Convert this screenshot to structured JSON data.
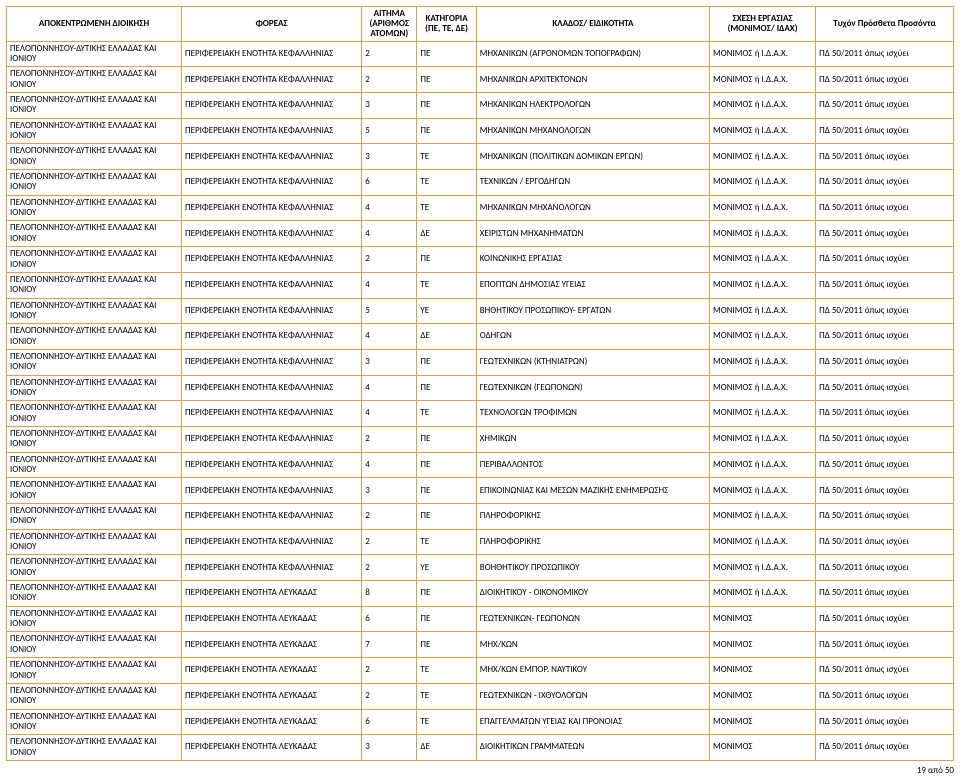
{
  "headers": {
    "h1": "ΑΠΟΚΕΝΤΡΩΜΕΝΗ ΔΙΟΙΚΗΣΗ",
    "h2": "ΦΟΡΕΑΣ",
    "h3": "ΑΙΤΗΜΑ (ΑΡΙΘΜΟΣ ΑΤΟΜΩΝ)",
    "h4": "ΚΑΤΗΓΟΡΙΑ (ΠΕ, ΤΕ, ΔΕ)",
    "h5": "ΚΛΑΔΟΣ/ ΕΙΔΙΚΟΤΗΤΑ",
    "h6": "ΣΧΕΣΗ ΕΡΓΑΣΙΑΣ (ΜΟΝΙΜΟΣ/ ΙΔΑΧ)",
    "h7": "Τυχόν Πρόσθετα Προσόντα"
  },
  "region_long": "ΠΕΛΟΠΟΝΝΗΣΟΥ-ΔΥΤΙΚΗΣ ΕΛΛΑΔΑΣ ΚΑΙ ΙΟΝΙΟΥ",
  "foreas_kef": "ΠΕΡΙΦΕΡΕΙΑΚΗ ΕΝΟΤΗΤΑ ΚΕΦΑΛΛΗΝΙΑΣ",
  "foreas_lef": "ΠΕΡΙΦΕΡΕΙΑΚΗ ΕΝΟΤΗΤΑ ΛΕΥΚΑΔΑΣ",
  "rel_mi": "ΜΟΝΙΜΟΣ ή Ι.Δ.Α.Χ.",
  "rel_m": "ΜΟΝΙΜΟΣ",
  "pros": "ΠΔ 50/2011  όπως ισχύει",
  "rows": [
    {
      "f": "kef",
      "n": "2",
      "k": "ΠΕ",
      "e": "ΜΗΧΑΝΙΚΩΝ (ΑΓΡΟΝΟΜΩΝ ΤΟΠΟΓΡΑΦΩΝ)",
      "r": "mi"
    },
    {
      "f": "kef",
      "n": "2",
      "k": "ΠΕ",
      "e": "ΜΗΧΑΝΙΚΩΝ ΑΡΧΙΤΕΚΤΟΝΩΝ",
      "r": "mi"
    },
    {
      "f": "kef",
      "n": "3",
      "k": "ΠΕ",
      "e": "ΜΗΧΑΝΙΚΩΝ ΗΛΕΚΤΡΟΛΟΓΩΝ",
      "r": "mi"
    },
    {
      "f": "kef",
      "n": "5",
      "k": "ΠΕ",
      "e": "ΜΗΧΑΝΙΚΩΝ ΜΗΧΑΝΟΛΟΓΩΝ",
      "r": "mi"
    },
    {
      "f": "kef",
      "n": "3",
      "k": "ΤΕ",
      "e": "ΜΗΧΑΝΙΚΩΝ (ΠΟΛΙΤΙΚΩΝ ΔΟΜΙΚΩΝ ΕΡΓΩΝ)",
      "r": "mi"
    },
    {
      "f": "kef",
      "n": "6",
      "k": "ΤΕ",
      "e": "ΤΕΧΝΙΚΩΝ / ΕΡΓΟΔΗΓΩΝ",
      "r": "mi"
    },
    {
      "f": "kef",
      "n": "4",
      "k": "ΤΕ",
      "e": "ΜΗΧΑΝΙΚΩΝ ΜΗΧΑΝΟΛΟΓΩΝ",
      "r": "mi"
    },
    {
      "f": "kef",
      "n": "4",
      "k": "ΔΕ",
      "e": "ΧΕΙΡΙΣΤΩΝ ΜΗΧΑΝΗΜΑΤΩΝ",
      "r": "mi"
    },
    {
      "f": "kef",
      "n": "2",
      "k": "ΠΕ",
      "e": "ΚΟΙΝΩΝΙΚΗΣ ΕΡΓΑΣΙΑΣ",
      "r": "mi"
    },
    {
      "f": "kef",
      "n": "4",
      "k": "ΤΕ",
      "e": "ΕΠΟΠΤΩΝ ΔΗΜΟΣΙΑΣ ΥΓΕΙΑΣ",
      "r": "mi"
    },
    {
      "f": "kef",
      "n": "5",
      "k": "ΥΕ",
      "e": "ΒΗΘΗΤΙΚΟΥ ΠΡΟΣΩΠΙΚΟΥ- ΕΡΓΑΤΩΝ",
      "r": "mi"
    },
    {
      "f": "kef",
      "n": "4",
      "k": "ΔΕ",
      "e": "ΟΔΗΓΩΝ",
      "r": "mi"
    },
    {
      "f": "kef",
      "n": "3",
      "k": "ΠΕ",
      "e": "ΓΕΩΤΕΧΝΙΚΩΝ (ΚΤΗΝΙΑΤΡΩΝ)",
      "r": "mi"
    },
    {
      "f": "kef",
      "n": "4",
      "k": "ΠΕ",
      "e": "ΓΕΩΤΕΧΝΙΚΩΝ (ΓΕΩΠΟΝΩΝ)",
      "r": "mi"
    },
    {
      "f": "kef",
      "n": "4",
      "k": "ΤΕ",
      "e": "ΤΕΧΝΟΛΟΓΩΝ ΤΡΟΦΙΜΩΝ",
      "r": "mi"
    },
    {
      "f": "kef",
      "n": "2",
      "k": "ΠΕ",
      "e": "ΧΗΜΙΚΩΝ",
      "r": "mi"
    },
    {
      "f": "kef",
      "n": "4",
      "k": "ΠΕ",
      "e": "ΠΕΡΙΒΑΛΛΟΝΤΟΣ",
      "r": "mi"
    },
    {
      "f": "kef",
      "n": "3",
      "k": "ΠΕ",
      "e": "ΕΠΙΚΟΙΝΩΝΙΑΣ ΚΑΙ ΜΕΣΩΝ ΜΑΖΙΚΗΣ ΕΝΗΜΕΡΩΣΗΣ",
      "r": "mi"
    },
    {
      "f": "kef",
      "n": "2",
      "k": "ΠΕ",
      "e": "ΠΛΗΡΟΦΟΡΙΚΗΣ",
      "r": "mi"
    },
    {
      "f": "kef",
      "n": "2",
      "k": "ΤΕ",
      "e": "ΠΛΗΡΟΦΟΡΙΚΗΣ",
      "r": "mi"
    },
    {
      "f": "kef",
      "n": "2",
      "k": "ΥΕ",
      "e": "ΒΟΗΘΗΤΙΚΟΥ ΠΡΟΣΩΠΙΚΟΥ",
      "r": "mi"
    },
    {
      "f": "lef",
      "n": "8",
      "k": "ΠΕ",
      "e": "ΔΙΟΙΚΗΤΙΚΟΥ - ΟΙΚΟΝΟΜΙΚΟΥ",
      "r": "mi"
    },
    {
      "f": "lef",
      "n": "6",
      "k": "ΠΕ",
      "e": "ΓΕΩΤΕΧΝΙΚΩΝ- ΓΕΩΠΟΝΩΝ",
      "r": "m"
    },
    {
      "f": "lef",
      "n": "7",
      "k": "ΠΕ",
      "e": "ΜΗΧ/ΚΩΝ",
      "r": "m"
    },
    {
      "f": "lef",
      "n": "2",
      "k": "ΤΕ",
      "e": "ΜΗΧ/ΚΩΝ ΕΜΠΟΡ. ΝΑΥΤΙΚΟΥ",
      "r": "m"
    },
    {
      "f": "lef",
      "n": "2",
      "k": "ΤΕ",
      "e": "ΓΕΩΤΕΧΝΙΚΩΝ - ΙΧΘΥΟΛΟΓΩΝ",
      "r": "m"
    },
    {
      "f": "lef",
      "n": "6",
      "k": "ΤΕ",
      "e": "ΕΠΑΓΓΕΛΜΑΤΩΝ ΥΓΕΙΑΣ ΚΑΙ ΠΡΟΝΟΙΑΣ",
      "r": "m"
    },
    {
      "f": "lef",
      "n": "3",
      "k": "ΔΕ",
      "e": "ΔΙΟΙΚΗΤΙΚΩΝ ΓΡΑΜΜΑΤΕΩΝ",
      "r": "m"
    }
  ],
  "footer": "19 από 50"
}
